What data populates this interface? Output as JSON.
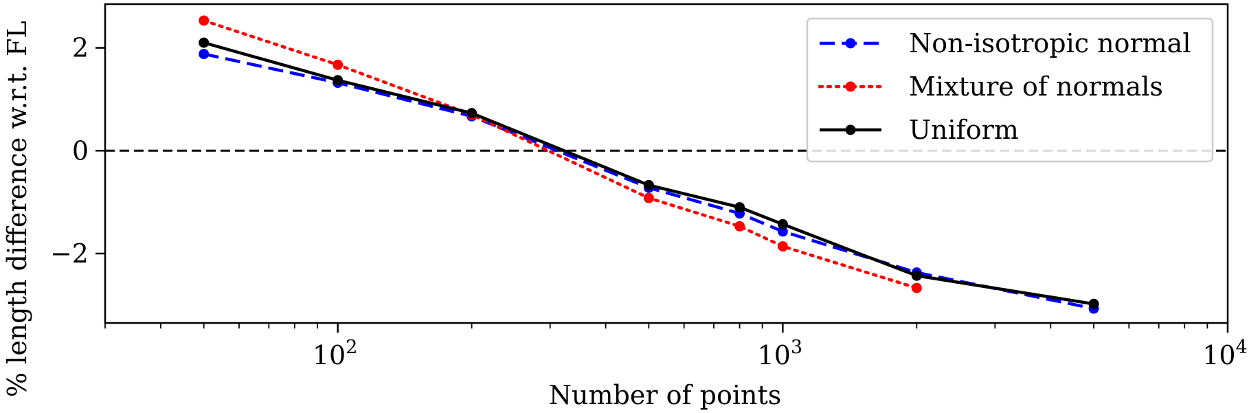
{
  "chart_data": {
    "type": "line",
    "title": "",
    "xlabel": "Number of points",
    "ylabel": "% length difference w.r.t. FL",
    "xscale": "log",
    "xlim": [
      30,
      10000
    ],
    "ylim": [
      -3.35,
      2.85
    ],
    "x_ticks": [
      {
        "value": 100,
        "base": "10",
        "exp": "2"
      },
      {
        "value": 1000,
        "base": "10",
        "exp": "3"
      },
      {
        "value": 10000,
        "base": "10",
        "exp": "4"
      }
    ],
    "y_ticks": [
      {
        "value": 2,
        "label": "2"
      },
      {
        "value": 0,
        "label": "0"
      },
      {
        "value": -2,
        "label": "−2"
      }
    ],
    "reference_line": {
      "y": 0,
      "style": "dashed",
      "color": "#000000"
    },
    "legend_position": "top-right",
    "series": [
      {
        "name": "Non-isotropic normal",
        "color": "#0000ff",
        "style": "dashed",
        "x": [
          50,
          100,
          200,
          500,
          800,
          1000,
          2000,
          5000
        ],
        "values": [
          1.88,
          1.32,
          0.67,
          -0.72,
          -1.22,
          -1.57,
          -2.37,
          -3.07
        ]
      },
      {
        "name": "Mixture of normals",
        "color": "#ff0000",
        "style": "dotted",
        "x": [
          50,
          100,
          200,
          500,
          800,
          1000,
          2000
        ],
        "values": [
          2.53,
          1.67,
          0.7,
          -0.92,
          -1.47,
          -1.86,
          -2.67
        ]
      },
      {
        "name": "Uniform",
        "color": "#000000",
        "style": "solid",
        "x": [
          50,
          100,
          200,
          500,
          800,
          1000,
          2000,
          5000
        ],
        "values": [
          2.1,
          1.37,
          0.73,
          -0.67,
          -1.1,
          -1.43,
          -2.43,
          -2.98
        ]
      }
    ]
  }
}
